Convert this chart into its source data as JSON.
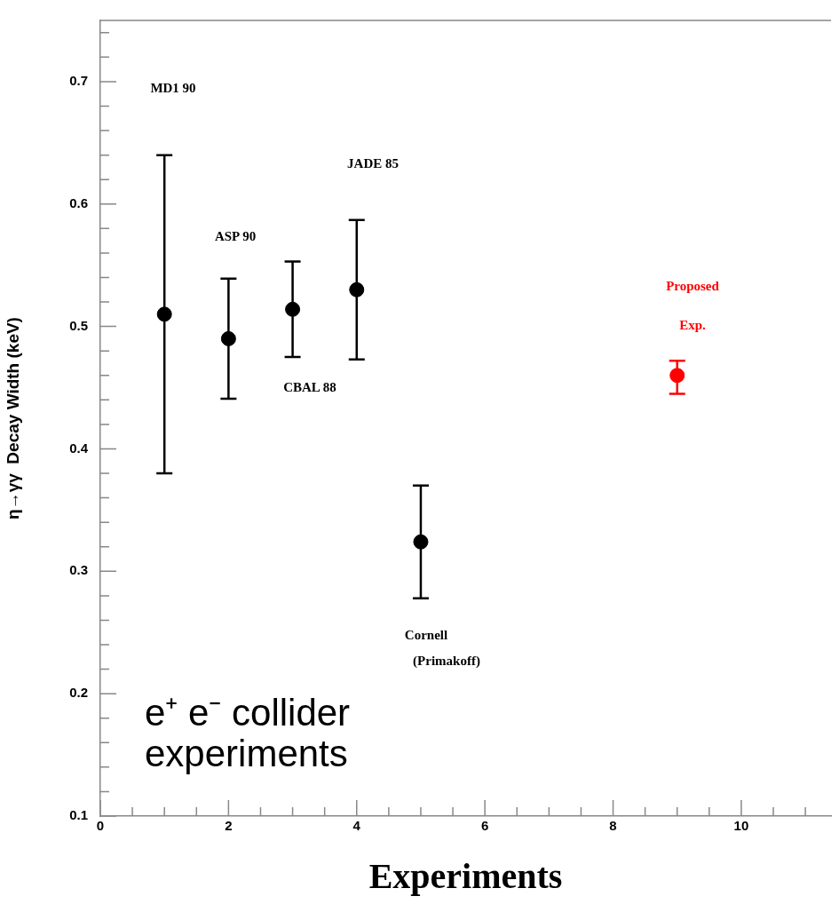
{
  "chart_data": {
    "type": "scatter",
    "xlabel": "Experiments",
    "ylabel": "η→γγ  Decay Width (keV)",
    "xlim": [
      0,
      11.4
    ],
    "ylim": [
      0.1,
      0.75
    ],
    "xticks": [
      0,
      {
        "value": 0.5,
        "label": null
      },
      {
        "value": 1,
        "label": null
      },
      {
        "value": 1.5,
        "label": null
      },
      2,
      {
        "value": 2.5,
        "label": null
      },
      {
        "value": 3,
        "label": null
      },
      {
        "value": 3.5,
        "label": null
      },
      4,
      {
        "value": 4.5,
        "label": null
      },
      {
        "value": 5,
        "label": null
      },
      {
        "value": 5.5,
        "label": null
      },
      6,
      {
        "value": 6.5,
        "label": null
      },
      {
        "value": 7,
        "label": null
      },
      {
        "value": 7.5,
        "label": null
      },
      8,
      {
        "value": 8.5,
        "label": null
      },
      {
        "value": 9,
        "label": null
      },
      {
        "value": 9.5,
        "label": null
      },
      10,
      {
        "value": 10.5,
        "label": null
      },
      {
        "value": 11,
        "label": null
      }
    ],
    "yticks": [
      0.1,
      {
        "value": 0.12,
        "label": null
      },
      {
        "value": 0.14,
        "label": null
      },
      {
        "value": 0.16,
        "label": null
      },
      {
        "value": 0.18,
        "label": null
      },
      0.2,
      {
        "value": 0.22,
        "label": null
      },
      {
        "value": 0.24,
        "label": null
      },
      {
        "value": 0.26,
        "label": null
      },
      {
        "value": 0.28,
        "label": null
      },
      0.3,
      {
        "value": 0.32,
        "label": null
      },
      {
        "value": 0.34,
        "label": null
      },
      {
        "value": 0.36,
        "label": null
      },
      {
        "value": 0.38,
        "label": null
      },
      0.4,
      {
        "value": 0.42,
        "label": null
      },
      {
        "value": 0.44,
        "label": null
      },
      {
        "value": 0.46,
        "label": null
      },
      {
        "value": 0.48,
        "label": null
      },
      0.5,
      {
        "value": 0.52,
        "label": null
      },
      {
        "value": 0.54,
        "label": null
      },
      {
        "value": 0.56,
        "label": null
      },
      {
        "value": 0.58,
        "label": null
      },
      0.6,
      {
        "value": 0.62,
        "label": null
      },
      {
        "value": 0.64,
        "label": null
      },
      {
        "value": 0.66,
        "label": null
      },
      {
        "value": 0.68,
        "label": null
      },
      0.7,
      {
        "value": 0.72,
        "label": null
      },
      {
        "value": 0.74,
        "label": null
      }
    ],
    "marker": "circle",
    "series": [
      {
        "color": "#000000",
        "x": [
          1,
          2,
          3,
          4,
          5
        ],
        "values": [
          0.51,
          0.49,
          0.514,
          0.53,
          0.324
        ],
        "errors": [
          [
            0.38,
            0.64
          ],
          [
            0.441,
            0.539
          ],
          [
            0.475,
            0.553
          ],
          [
            0.473,
            0.587
          ],
          [
            0.278,
            0.37
          ]
        ]
      },
      {
        "color": "#ff0000",
        "x": [
          9
        ],
        "values": [
          0.46
        ],
        "errors": [
          [
            0.445,
            0.472
          ]
        ]
      }
    ],
    "annotations": [
      "MD1 90",
      "ASP 90",
      "CBAL 88",
      "JADE 85",
      "Cornell",
      "(Primakoff)",
      "Proposed",
      "Exp.",
      "e⁺ e⁻ collider experiments"
    ]
  }
}
